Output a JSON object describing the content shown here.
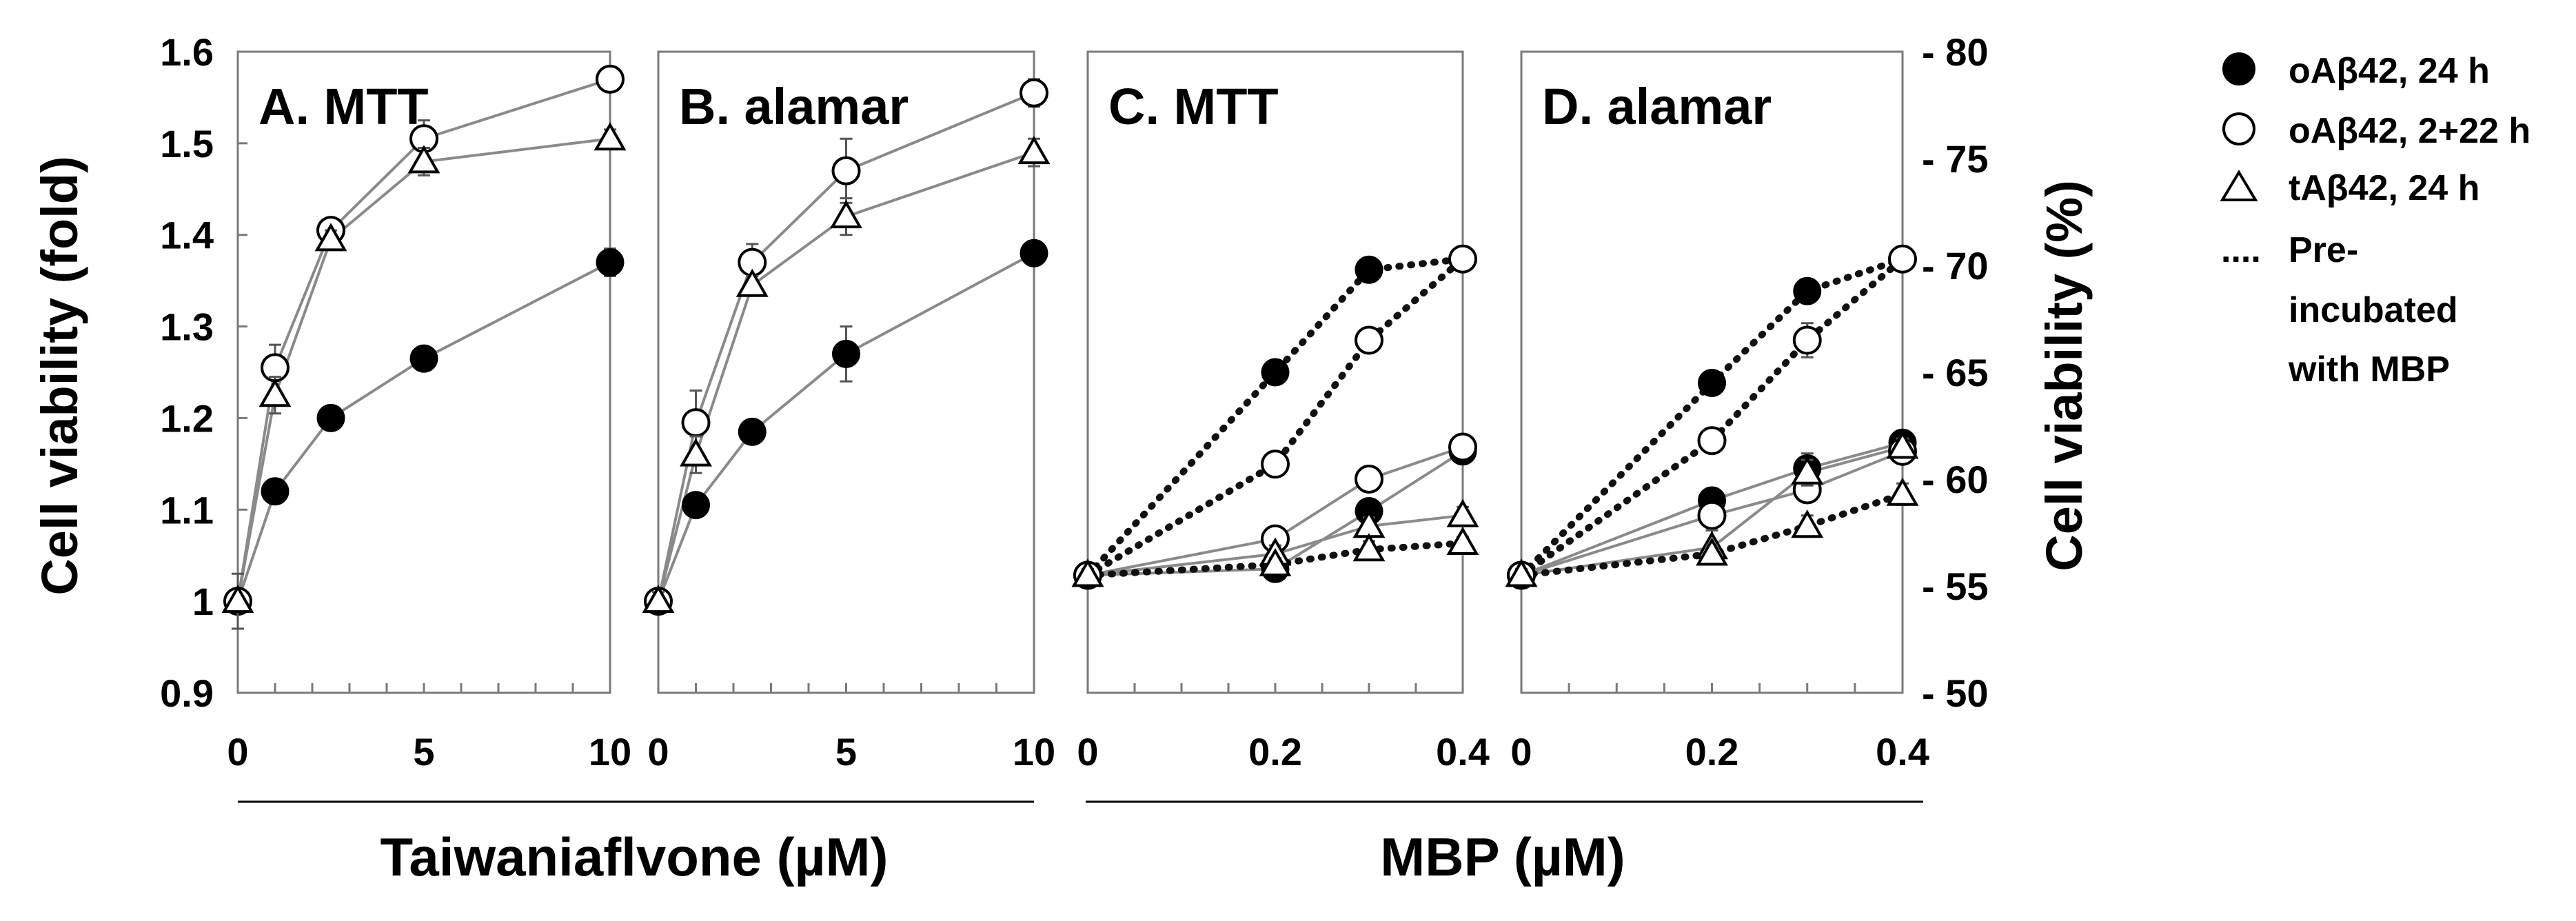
{
  "figure": {
    "left_axis_title": "Cell viability (fold)",
    "right_axis_title": "Cell viability (%)",
    "group_label_left": "Taiwaniaflvone (µM)",
    "group_label_right": "MBP (µM)",
    "legend": [
      {
        "marker": "filled-circle",
        "label": "oAβ42, 24 h"
      },
      {
        "marker": "open-circle",
        "label": "oAβ42, 2+22 h"
      },
      {
        "marker": "open-triangle",
        "label": "tAβ42, 24 h"
      },
      {
        "marker": "dots",
        "label": "....",
        "lines": [
          "Pre-",
          "incubated",
          "with MBP"
        ]
      }
    ]
  },
  "chart_data": [
    {
      "type": "line",
      "title": "A. MTT",
      "xlabel": "Taiwaniaflvone (µM)",
      "ylabel": "Cell viability (fold)",
      "xlim": [
        0,
        10
      ],
      "ylim": [
        0.9,
        1.6
      ],
      "xticks": [
        0,
        5,
        10
      ],
      "xtick_labels": [
        "0",
        "5",
        "10"
      ],
      "yticks": [
        0.9,
        1.0,
        1.1,
        1.2,
        1.3,
        1.4,
        1.5,
        1.6
      ],
      "ytick_labels": [
        "0.9",
        "1",
        "1.1",
        "1.2",
        "1.3",
        "1.4",
        "1.5",
        "1.6"
      ],
      "series": [
        {
          "name": "oAβ42, 24 h",
          "marker": "filled-circle",
          "style": "solid",
          "x": [
            0,
            1,
            2.5,
            5,
            10
          ],
          "y": [
            1.0,
            1.12,
            1.2,
            1.265,
            1.37
          ],
          "err": [
            0.01,
            0.01,
            0.01,
            0.01,
            0.015
          ]
        },
        {
          "name": "oAβ42, 2+22 h",
          "marker": "open-circle",
          "style": "solid",
          "x": [
            0,
            1,
            2.5,
            5,
            10
          ],
          "y": [
            1.0,
            1.255,
            1.405,
            1.505,
            1.57
          ],
          "err": [
            0.01,
            0.025,
            0.01,
            0.02,
            0.01
          ]
        },
        {
          "name": "tAβ42, 24 h",
          "marker": "open-triangle",
          "style": "solid",
          "x": [
            0,
            1,
            2.5,
            5,
            10
          ],
          "y": [
            1.0,
            1.225,
            1.395,
            1.48,
            1.505
          ],
          "err": [
            0.03,
            0.02,
            0.01,
            0.015,
            0.01
          ]
        }
      ]
    },
    {
      "type": "line",
      "title": "B. alamar",
      "xlim": [
        0,
        10
      ],
      "ylim": [
        0.9,
        1.6
      ],
      "xticks": [
        0,
        5,
        10
      ],
      "xtick_labels": [
        "0",
        "5",
        "10"
      ],
      "series": [
        {
          "name": "oAβ42, 24 h",
          "marker": "filled-circle",
          "style": "solid",
          "x": [
            0,
            1,
            2.5,
            5,
            10
          ],
          "y": [
            1.0,
            1.105,
            1.185,
            1.27,
            1.38
          ],
          "err": [
            0.01,
            0.01,
            0.01,
            0.03,
            0.01
          ]
        },
        {
          "name": "oAβ42, 2+22 h",
          "marker": "open-circle",
          "style": "solid",
          "x": [
            0,
            1,
            2.5,
            5,
            10
          ],
          "y": [
            1.0,
            1.195,
            1.37,
            1.47,
            1.555
          ],
          "err": [
            0.01,
            0.035,
            0.02,
            0.035,
            0.015
          ]
        },
        {
          "name": "tAβ42, 24 h",
          "marker": "open-triangle",
          "style": "solid",
          "x": [
            0,
            1,
            2.5,
            5,
            10
          ],
          "y": [
            1.0,
            1.16,
            1.345,
            1.42,
            1.49
          ],
          "err": [
            0.01,
            0.02,
            0.01,
            0.02,
            0.015
          ]
        }
      ]
    },
    {
      "type": "line",
      "title": "C. MTT",
      "xlabel": "MBP (µM)",
      "xlim": [
        0,
        0.4
      ],
      "ylim": [
        50,
        80
      ],
      "xticks": [
        0,
        0.2,
        0.4
      ],
      "xtick_labels": [
        "0",
        "0.2",
        "0.4"
      ],
      "series": [
        {
          "name": "oAβ42, 24 h",
          "marker": "filled-circle",
          "style": "solid",
          "x": [
            0,
            0.2,
            0.3,
            0.4
          ],
          "y": [
            55.5,
            55.8,
            58.5,
            61.3
          ],
          "err": [
            0.5,
            0.4,
            0.5,
            0.5
          ]
        },
        {
          "name": "oAβ42, 2+22 h",
          "marker": "open-circle",
          "style": "solid",
          "x": [
            0,
            0.2,
            0.3,
            0.4
          ],
          "y": [
            55.5,
            57.2,
            60.0,
            61.5
          ],
          "err": [
            0.5,
            0.4,
            0.5,
            0.4
          ]
        },
        {
          "name": "tAβ42, 24 h",
          "marker": "open-triangle",
          "style": "solid",
          "x": [
            0,
            0.2,
            0.3,
            0.4
          ],
          "y": [
            55.5,
            56.5,
            57.8,
            58.3
          ],
          "err": [
            0.5,
            0.4,
            0.4,
            0.4
          ]
        },
        {
          "name": "oAβ42, 24 h",
          "marker": "filled-circle",
          "style": "dotted",
          "x": [
            0,
            0.2,
            0.3,
            0.4
          ],
          "y": [
            55.5,
            65.0,
            69.8,
            70.3
          ],
          "err": [
            0.3,
            0.3,
            0.3,
            0.3
          ]
        },
        {
          "name": "oAβ42, 2+22 h",
          "marker": "open-circle",
          "style": "dotted",
          "x": [
            0,
            0.2,
            0.3,
            0.4
          ],
          "y": [
            55.5,
            60.7,
            66.5,
            70.3
          ],
          "err": [
            0.3,
            0.3,
            0.5,
            0.3
          ]
        },
        {
          "name": "tAβ42, 24 h",
          "marker": "open-triangle",
          "style": "dotted",
          "x": [
            0,
            0.2,
            0.3,
            0.4
          ],
          "y": [
            55.5,
            56.0,
            56.7,
            57.0
          ],
          "err": [
            0.3,
            0.3,
            0.4,
            0.3
          ]
        }
      ]
    },
    {
      "type": "line",
      "title": "D. alamar",
      "xlim": [
        0,
        0.4
      ],
      "ylim": [
        50,
        80
      ],
      "xticks": [
        0,
        0.2,
        0.4
      ],
      "xtick_labels": [
        "0",
        "0.2",
        "0.4"
      ],
      "y2label": "Cell viability (%)",
      "y2ticks": [
        50,
        55,
        60,
        65,
        70,
        75,
        80
      ],
      "y2tick_labels": [
        "- 50",
        "- 55",
        "- 60",
        "- 65",
        "- 70",
        "- 75",
        "- 80"
      ],
      "series": [
        {
          "name": "oAβ42, 24 h",
          "marker": "filled-circle",
          "style": "solid",
          "x": [
            0,
            0.2,
            0.3,
            0.4
          ],
          "y": [
            55.5,
            59.0,
            60.5,
            61.7
          ],
          "err": [
            0.5,
            0.5,
            0.7,
            0.5
          ]
        },
        {
          "name": "oAβ42, 2+22 h",
          "marker": "open-circle",
          "style": "solid",
          "x": [
            0,
            0.2,
            0.3,
            0.4
          ],
          "y": [
            55.5,
            58.3,
            59.5,
            61.3
          ],
          "err": [
            0.5,
            0.4,
            0.5,
            0.4
          ]
        },
        {
          "name": "tAβ42, 24 h",
          "marker": "open-triangle",
          "style": "solid",
          "x": [
            0,
            0.2,
            0.3,
            0.4
          ],
          "y": [
            55.5,
            56.8,
            60.3,
            61.5
          ],
          "err": [
            0.5,
            0.8,
            0.6,
            0.4
          ]
        },
        {
          "name": "oAβ42, 24 h",
          "marker": "filled-circle",
          "style": "dotted",
          "x": [
            0,
            0.2,
            0.3,
            0.4
          ],
          "y": [
            55.5,
            64.5,
            68.8,
            70.3
          ],
          "err": [
            0.3,
            0.4,
            0.3,
            0.3
          ]
        },
        {
          "name": "oAβ42, 2+22 h",
          "marker": "open-circle",
          "style": "dotted",
          "x": [
            0,
            0.2,
            0.3,
            0.4
          ],
          "y": [
            55.5,
            61.8,
            66.5,
            70.3
          ],
          "err": [
            0.3,
            0.3,
            0.8,
            0.3
          ]
        },
        {
          "name": "tAβ42, 24 h",
          "marker": "open-triangle",
          "style": "dotted",
          "x": [
            0,
            0.2,
            0.3,
            0.4
          ],
          "y": [
            55.5,
            56.5,
            57.8,
            59.3
          ],
          "err": [
            0.3,
            0.4,
            0.5,
            0.5
          ]
        }
      ]
    }
  ]
}
